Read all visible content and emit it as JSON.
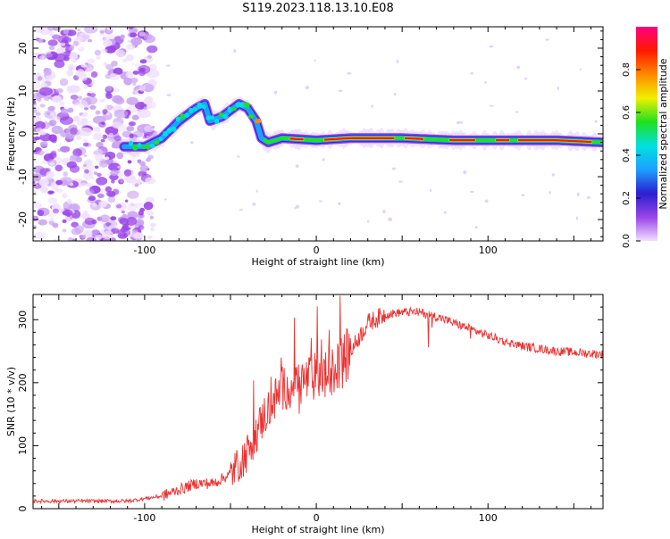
{
  "title": "S119.2023.118.13.10.E08",
  "chart_data": [
    {
      "type": "heatmap",
      "panel": "spectrogram",
      "xlabel": "Height of straight line (km)",
      "ylabel": "Frequency (Hz)",
      "xlim": [
        -165,
        167
      ],
      "ylim": [
        -25,
        25
      ],
      "xticks": [
        -100,
        0,
        100
      ],
      "yticks": [
        -20,
        -10,
        0,
        10,
        20
      ],
      "grid": false,
      "ridge": {
        "x": [
          -110,
          -100,
          -90,
          -80,
          -70,
          -65,
          -62,
          -55,
          -45,
          -40,
          -35,
          -32,
          -28,
          -20,
          0,
          20,
          50,
          80,
          100,
          120,
          140,
          167
        ],
        "y": [
          -3,
          -3,
          -1,
          3,
          6,
          7,
          3,
          4,
          7,
          6,
          3,
          -1,
          -2,
          -1,
          -1.5,
          -1,
          -1,
          -1.5,
          -1.5,
          -1.5,
          -1.5,
          -2
        ]
      },
      "colorbar": {
        "label": "Normalized spectral amplitude",
        "range": [
          0,
          1
        ],
        "ticks": [
          0.0,
          0.2,
          0.4,
          0.6,
          0.8
        ],
        "tick_labels": [
          "0.0",
          "0.2",
          "0.4",
          "0.6",
          "0.8"
        ],
        "colors": [
          "#f0e0ff",
          "#9a44e8",
          "#2a1fd0",
          "#1ea0ff",
          "#00e0e0",
          "#20e020",
          "#f0f000",
          "#ff8800",
          "#ff1800",
          "#ff0080"
        ]
      }
    },
    {
      "type": "line",
      "panel": "snr",
      "xlabel": "Height of straight line (km)",
      "ylabel": "SNR (10 * v/v)",
      "xlim": [
        -165,
        167
      ],
      "ylim": [
        0,
        340
      ],
      "xticks": [
        -100,
        0,
        100
      ],
      "yticks": [
        0,
        100,
        200,
        300
      ],
      "grid": false,
      "line_color": "#ee3030",
      "trend": {
        "x": [
          -165,
          -140,
          -110,
          -90,
          -80,
          -70,
          -60,
          -50,
          -40,
          -30,
          -20,
          -10,
          0,
          10,
          20,
          30,
          40,
          50,
          60,
          70,
          80,
          90,
          100,
          110,
          120,
          140,
          167
        ],
        "y": [
          12,
          12,
          12,
          20,
          30,
          40,
          40,
          55,
          90,
          150,
          190,
          200,
          210,
          215,
          250,
          295,
          308,
          312,
          312,
          305,
          295,
          285,
          275,
          265,
          258,
          250,
          245
        ]
      }
    }
  ]
}
